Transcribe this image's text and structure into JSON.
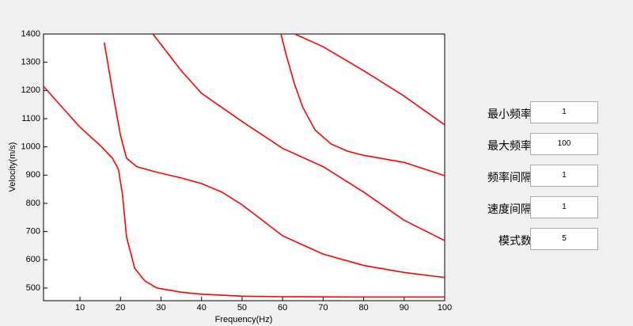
{
  "chart_data": {
    "type": "line",
    "xlabel": "Frequency(Hz)",
    "ylabel": "Velocity(m/s)",
    "xlim": [
      1,
      100
    ],
    "ylim": [
      455,
      1400
    ],
    "xticks": [
      10,
      20,
      30,
      40,
      50,
      60,
      70,
      80,
      90,
      100
    ],
    "yticks": [
      500,
      600,
      700,
      800,
      900,
      1000,
      1100,
      1200,
      1300,
      1400
    ],
    "series": [
      {
        "color": "#ff0000",
        "x": [
          1,
          5,
          10,
          15,
          18,
          19.5,
          20.5,
          21.5,
          23.5,
          26,
          29,
          35,
          40,
          50,
          60,
          80,
          100
        ],
        "values": [
          1215,
          1150,
          1070,
          1005,
          960,
          920,
          830,
          680,
          570,
          525,
          500,
          485,
          478,
          471,
          469,
          468,
          468
        ]
      },
      {
        "color": "#ff0000",
        "x": [
          16,
          18,
          20,
          21.5,
          24,
          29,
          35,
          40,
          45,
          50,
          55,
          60,
          70,
          80,
          90,
          100
        ],
        "values": [
          1370,
          1200,
          1040,
          960,
          930,
          910,
          890,
          870,
          840,
          795,
          740,
          685,
          620,
          580,
          555,
          537
        ]
      },
      {
        "color": "#ff0000",
        "x": [
          28,
          35,
          40,
          50,
          60,
          70,
          80,
          90,
          100
        ],
        "values": [
          1400,
          1270,
          1190,
          1090,
          995,
          930,
          840,
          740,
          668
        ]
      },
      {
        "color": "#ff0000",
        "x": [
          59.6,
          61,
          63,
          65,
          68,
          72,
          76,
          80,
          90,
          100
        ],
        "values": [
          1400,
          1320,
          1220,
          1140,
          1060,
          1010,
          985,
          970,
          945,
          898
        ]
      },
      {
        "color": "#ff0000",
        "x": [
          63,
          70,
          80,
          90,
          100
        ],
        "values": [
          1400,
          1355,
          1270,
          1180,
          1078
        ]
      }
    ]
  },
  "form": {
    "fields": [
      {
        "label": "最小频率",
        "value": "1"
      },
      {
        "label": "最大频率",
        "value": "100"
      },
      {
        "label": "频率间隔",
        "value": "1"
      },
      {
        "label": "速度间隔",
        "value": "1"
      },
      {
        "label": "模式数",
        "value": "5"
      }
    ]
  }
}
